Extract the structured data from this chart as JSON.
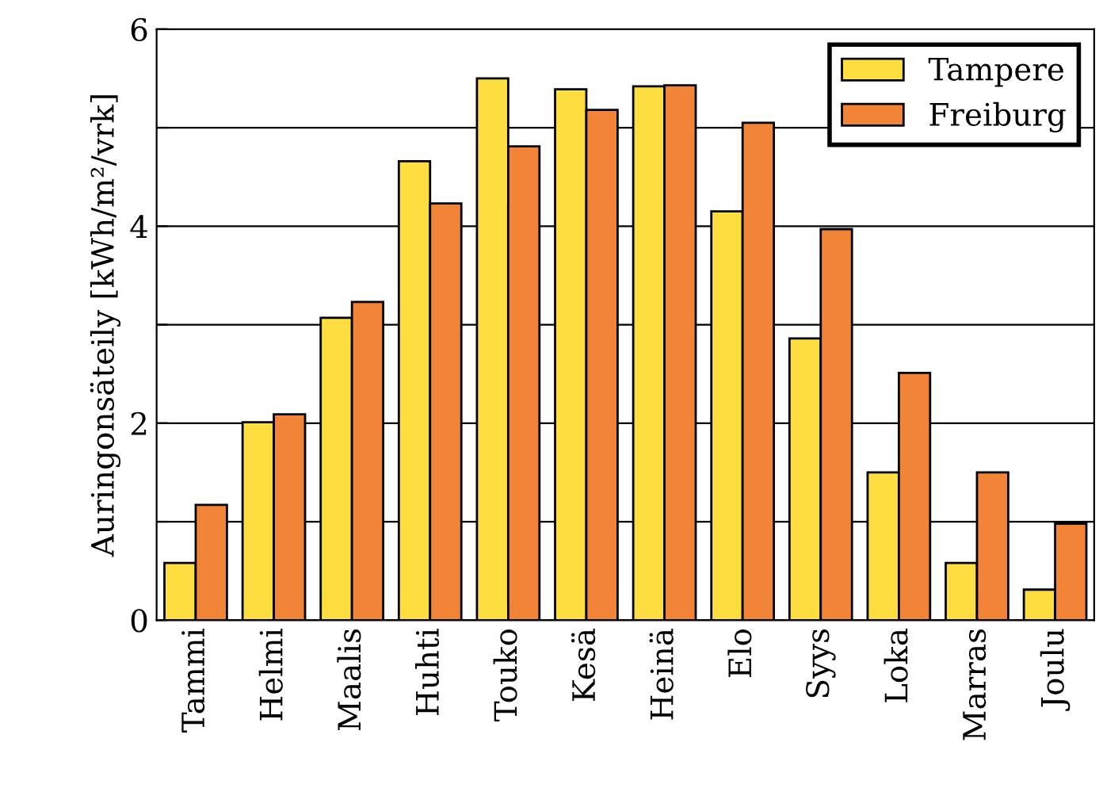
{
  "chart_data": {
    "type": "bar",
    "ylabel": "Auringonsäteily [kWh/m²/vrk]",
    "categories": [
      "Tammi",
      "Helmi",
      "Maalis",
      "Huhti",
      "Touko",
      "Kesä",
      "Heinä",
      "Elo",
      "Syys",
      "Loka",
      "Marras",
      "Joulu"
    ],
    "series": [
      {
        "name": "Tampere",
        "color": "#fddd3f",
        "values": [
          0.58,
          2.01,
          3.07,
          4.66,
          5.5,
          5.39,
          5.42,
          4.15,
          2.86,
          1.5,
          0.58,
          0.31
        ]
      },
      {
        "name": "Freiburg",
        "color": "#f28438",
        "values": [
          1.17,
          2.09,
          3.23,
          4.23,
          4.81,
          5.18,
          5.43,
          5.05,
          3.97,
          2.51,
          1.5,
          0.98
        ]
      }
    ],
    "ylim": [
      0,
      6
    ],
    "yticks": [
      0,
      {
        "value": 1,
        "label": null
      },
      2,
      {
        "value": 3,
        "label": null
      },
      4,
      {
        "value": 5,
        "label": null
      },
      6
    ],
    "grid": "y",
    "legend": "top right"
  }
}
